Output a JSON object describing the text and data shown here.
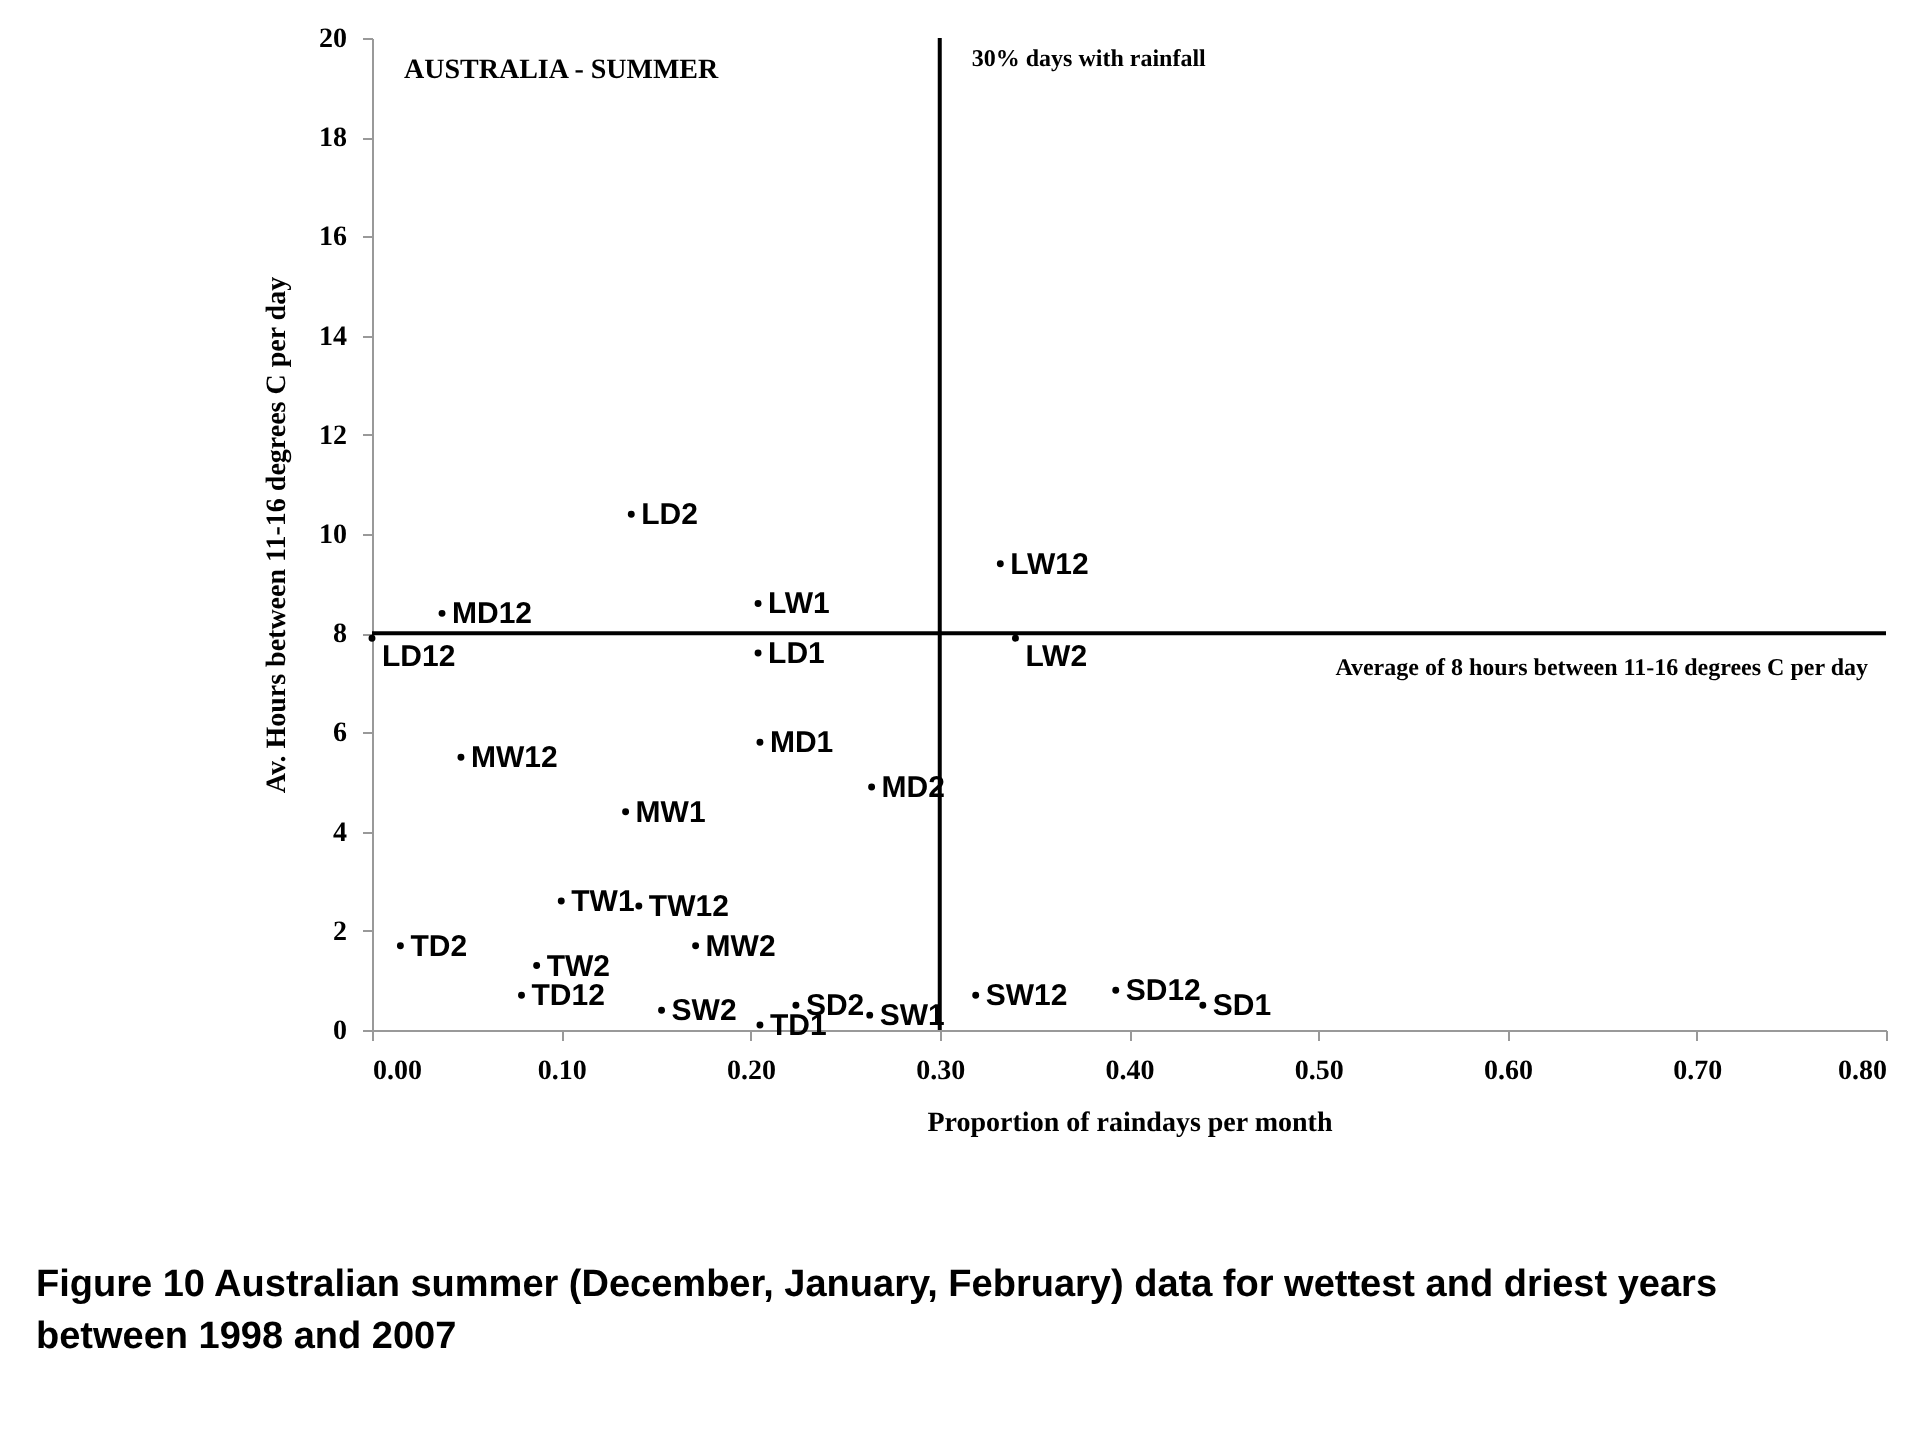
{
  "chart_data": {
    "type": "scatter",
    "xlabel": "Proportion of raindays per month",
    "ylabel": "Av. Hours between 11-16 degrees C per day",
    "x": [
      0.137,
      0.332,
      0.204,
      0.037,
      0.0,
      0.204,
      0.34,
      0.047,
      0.205,
      0.264,
      0.134,
      0.1,
      0.141,
      0.171,
      0.015,
      0.087,
      0.079,
      0.153,
      0.205,
      0.224,
      0.263,
      0.319,
      0.393,
      0.439
    ],
    "values": [
      10.4,
      9.4,
      8.6,
      8.4,
      7.9,
      7.6,
      7.9,
      5.5,
      5.8,
      4.9,
      4.4,
      2.6,
      2.5,
      1.7,
      1.7,
      1.3,
      0.7,
      0.4,
      0.1,
      0.5,
      0.3,
      0.7,
      0.8,
      0.5
    ],
    "value_labels": [
      "LD2",
      "LW12",
      "LW1",
      "MD12",
      "LD12",
      "LD1",
      "LW2",
      "MW12",
      "MD1",
      "MD2",
      "MW1",
      "TW1",
      "TW12",
      "MW2",
      "TD2",
      "TW2",
      "TD12",
      "SW2",
      "TD1",
      "SD2",
      "SW1",
      "SW12",
      "SD12",
      "SD1"
    ],
    "marker": "circle",
    "color": "#000000",
    "xlim": [
      0,
      0.8
    ],
    "xticks": [
      {
        "value": 0,
        "label": "0.00"
      },
      {
        "value": 0.1,
        "label": "0.10"
      },
      {
        "value": 0.2,
        "label": "0.20"
      },
      {
        "value": 0.3,
        "label": "0.30"
      },
      {
        "value": 0.4,
        "label": "0.40"
      },
      {
        "value": 0.5,
        "label": "0.50"
      },
      {
        "value": 0.6,
        "label": "0.60"
      },
      {
        "value": 0.7,
        "label": "0.70"
      },
      {
        "value": 0.8,
        "label": "0.80"
      }
    ],
    "ylim": [
      0,
      20
    ],
    "yticks": [
      0,
      2,
      4,
      6,
      8,
      10,
      12,
      14,
      16,
      18,
      20
    ],
    "ref_lines": [
      {
        "axis": "x",
        "value": 0.3,
        "label": "30% days with rainfall",
        "color": "#000000"
      },
      {
        "axis": "y",
        "value": 8,
        "label": "Average of 8 hours between 11-16 degrees C per day",
        "color": "#000000"
      }
    ],
    "annotations": [
      "AUSTRALIA - SUMMER",
      "Figure 10 Australian summer (December, January, February) data for wettest and driest years between 1998 and 2007"
    ]
  }
}
